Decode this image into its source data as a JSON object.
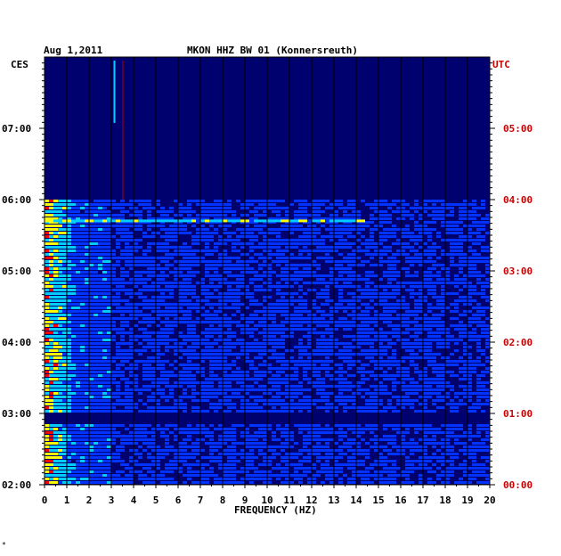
{
  "header": {
    "date": "Aug 1,2011",
    "station": "MKON HHZ BW 01 (Konnersreuth)"
  },
  "chart_data": {
    "type": "heatmap",
    "title": "MKON HHZ BW 01 (Konnersreuth)",
    "date": "Aug 1,2011",
    "xlabel": "FREQUENCY (HZ)",
    "xlim": [
      0,
      20
    ],
    "x_ticks": [
      "0",
      "1",
      "2",
      "3",
      "4",
      "5",
      "6",
      "7",
      "8",
      "9",
      "10",
      "11",
      "12",
      "13",
      "14",
      "15",
      "16",
      "17",
      "18",
      "19",
      "20"
    ],
    "left_axis_label": "CES",
    "right_axis_label": "UTC",
    "left_ticks": [
      "07:00",
      "06:00",
      "05:00",
      "04:00",
      "03:00",
      "02:00"
    ],
    "right_ticks": [
      "05:00",
      "04:00",
      "03:00",
      "02:00",
      "01:00",
      "00:00"
    ],
    "time_range_ces": [
      "02:00",
      "07:55"
    ],
    "colormap": [
      "#00006e",
      "#0033ff",
      "#00ccff",
      "#ffff00",
      "#ff0000"
    ]
  },
  "footer": {
    "mark": "*"
  },
  "colors": {
    "background_dark": "#00006e",
    "utc_red": "#cc0000",
    "grid_line": "#000000"
  }
}
